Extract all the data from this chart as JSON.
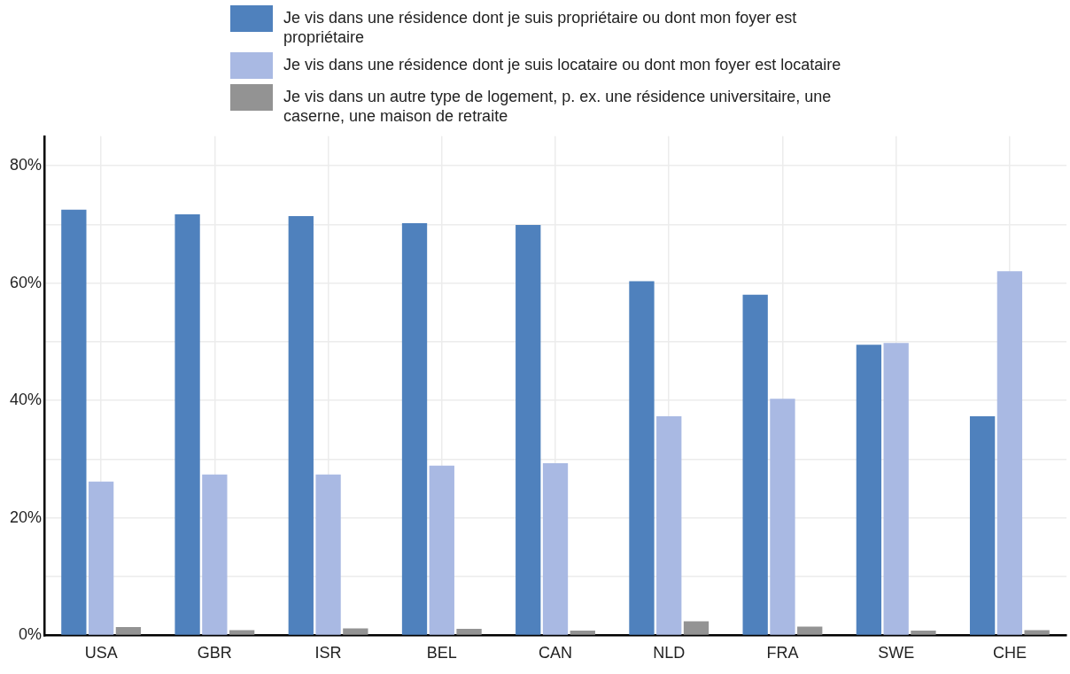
{
  "chart_data": {
    "type": "bar",
    "categories": [
      "USA",
      "GBR",
      "ISR",
      "BEL",
      "CAN",
      "NLD",
      "FRA",
      "SWE",
      "CHE"
    ],
    "series": [
      {
        "name": "Je vis dans une résidence dont je suis propriétaire ou dont mon foyer est propriétaire",
        "color": "#4f81bd",
        "values": [
          72.5,
          71.7,
          71.4,
          70.2,
          69.9,
          60.3,
          58.0,
          49.5,
          37.3
        ]
      },
      {
        "name": "Je vis dans une résidence dont je suis locataire ou dont mon foyer est locataire",
        "color": "#a9b9e3",
        "values": [
          26.2,
          27.4,
          27.4,
          28.9,
          29.3,
          37.3,
          40.3,
          49.8,
          62.0
        ]
      },
      {
        "name": "Je vis dans un autre type de logement, p. ex. une résidence universitaire, une caserne, une maison de retraite",
        "color": "#939393",
        "values": [
          1.4,
          0.9,
          1.2,
          1.1,
          0.8,
          2.4,
          1.5,
          0.8,
          0.9
        ]
      }
    ],
    "ylim": [
      0,
      85
    ],
    "yticks": [
      {
        "value": 0,
        "label": "0%"
      },
      {
        "value": 10,
        "label": null
      },
      {
        "value": 20,
        "label": "20%"
      },
      {
        "value": 30,
        "label": null
      },
      {
        "value": 40,
        "label": "40%"
      },
      {
        "value": 50,
        "label": null
      },
      {
        "value": 60,
        "label": "60%"
      },
      {
        "value": 70,
        "label": null
      },
      {
        "value": 80,
        "label": "80%"
      }
    ],
    "grid": true,
    "legend": "top"
  }
}
